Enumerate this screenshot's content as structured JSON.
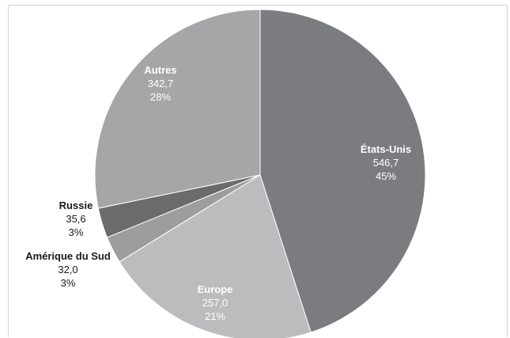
{
  "chart_data": {
    "type": "pie",
    "slices": [
      {
        "label": "États-Unis",
        "value_text": "546,7",
        "percent_text": "45%",
        "value": 546.7,
        "color": "#7b7c80",
        "label_color": "#ffffff"
      },
      {
        "label": "Europe",
        "value_text": "257,0",
        "percent_text": "21%",
        "value": 257.0,
        "color": "#bcbcbe",
        "label_color": "#ffffff"
      },
      {
        "label": "Amérique du Sud",
        "value_text": "32,0",
        "percent_text": "3%",
        "value": 32.0,
        "color": "#9d9d9f",
        "label_color": "#1a1a1a"
      },
      {
        "label": "Russie",
        "value_text": "35,6",
        "percent_text": "3%",
        "value": 35.6,
        "color": "#6b6b6d",
        "label_color": "#1a1a1a"
      },
      {
        "label": "Autres",
        "value_text": "342,7",
        "percent_text": "28%",
        "value": 342.7,
        "color": "#a6a6a8",
        "label_color": "#ffffff"
      }
    ],
    "start_angle_deg": 0,
    "direction": "clockwise",
    "legend": "none"
  }
}
